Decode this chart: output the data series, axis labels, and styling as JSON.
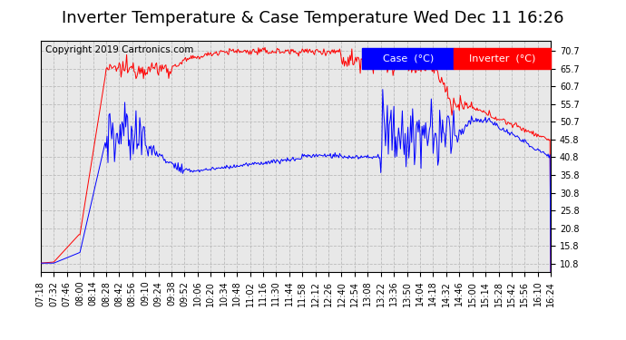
{
  "title": "Inverter Temperature & Case Temperature Wed Dec 11 16:26",
  "copyright": "Copyright 2019 Cartronics.com",
  "legend_labels": [
    "Case  (°C)",
    "Inverter  (°C)"
  ],
  "case_color": "blue",
  "inverter_color": "red",
  "background_color": "#ffffff",
  "plot_bg_color": "#e8e8e8",
  "grid_color": "#bbbbbb",
  "y_ticks": [
    10.8,
    15.8,
    20.8,
    25.8,
    30.8,
    35.8,
    40.8,
    45.8,
    50.7,
    55.7,
    60.7,
    65.7,
    70.7
  ],
  "y_min": 8.5,
  "y_max": 73.5,
  "x_tick_labels": [
    "07:18",
    "07:32",
    "07:46",
    "08:00",
    "08:14",
    "08:28",
    "08:42",
    "08:56",
    "09:10",
    "09:24",
    "09:38",
    "09:52",
    "10:06",
    "10:20",
    "10:34",
    "10:48",
    "11:02",
    "11:16",
    "11:30",
    "11:44",
    "11:58",
    "12:12",
    "12:26",
    "12:40",
    "12:54",
    "13:08",
    "13:22",
    "13:36",
    "13:50",
    "14:04",
    "14:18",
    "14:32",
    "14:46",
    "15:00",
    "15:14",
    "15:28",
    "15:42",
    "15:56",
    "16:10",
    "16:24"
  ],
  "title_fontsize": 13,
  "tick_fontsize": 7,
  "copyright_fontsize": 7.5,
  "legend_fontsize": 8
}
